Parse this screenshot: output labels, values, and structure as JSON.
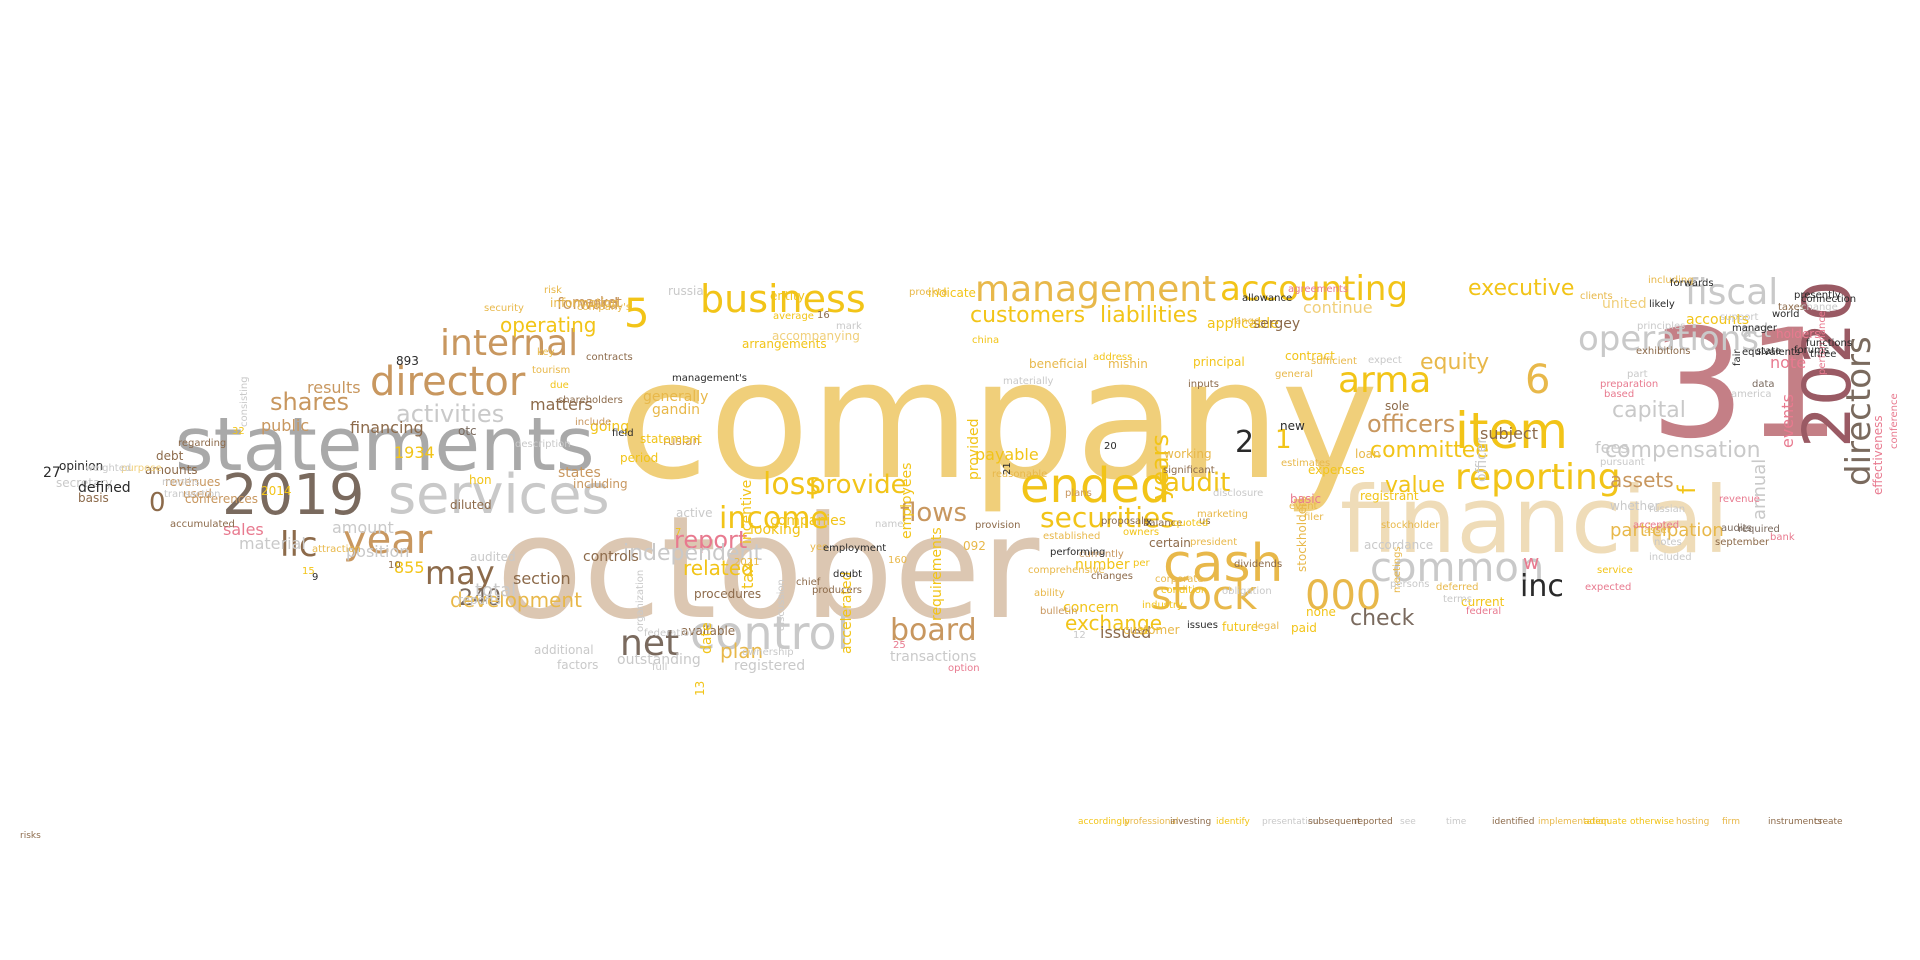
{
  "palette": {
    "gold": "#f2c418",
    "amber": "#e8b84a",
    "sand": "#f0cf7a",
    "tan": "#c8975f",
    "brown": "#8c6a4a",
    "taupe": "#7a6a5e",
    "gray": "#a9a9a9",
    "lightgray": "#c9c9c9",
    "beige": "#dcc7b2",
    "cream": "#efdcb8",
    "rose": "#c47f86",
    "pink": "#e87a8f",
    "mauve": "#9a5a64",
    "dark": "#2a2a2a"
  },
  "words": [
    {
      "text": "company",
      "color": "sand"
    },
    {
      "text": "october",
      "color": "beige"
    },
    {
      "text": "31",
      "color": "rose"
    },
    {
      "text": "financial",
      "color": "cream"
    },
    {
      "text": "statements",
      "color": "gray"
    },
    {
      "text": "2020",
      "color": "mauve"
    },
    {
      "text": "2019",
      "color": "taupe"
    },
    {
      "text": "services",
      "color": "lightgray"
    },
    {
      "text": "control",
      "color": "lightgray"
    },
    {
      "text": "business",
      "color": "gold"
    },
    {
      "text": "management",
      "color": "amber"
    },
    {
      "text": "accounting",
      "color": "gold"
    },
    {
      "text": "item",
      "color": "gold"
    },
    {
      "text": "ended",
      "color": "gold"
    },
    {
      "text": "cash",
      "color": "amber"
    },
    {
      "text": "director",
      "color": "tan"
    },
    {
      "text": "internal",
      "color": "tan"
    },
    {
      "text": "year",
      "color": "tan"
    },
    {
      "text": "operations",
      "color": "lightgray"
    },
    {
      "text": "fiscal",
      "color": "lightgray"
    },
    {
      "text": "reporting",
      "color": "gold"
    },
    {
      "text": "stock",
      "color": "amber"
    },
    {
      "text": "000",
      "color": "amber"
    },
    {
      "text": "common",
      "color": "lightgray"
    },
    {
      "text": "directors",
      "color": "taupe"
    },
    {
      "text": "arma",
      "color": "gold"
    },
    {
      "text": "6",
      "color": "amber"
    },
    {
      "text": "5",
      "color": "gold"
    },
    {
      "text": "net",
      "color": "taupe"
    },
    {
      "text": "board",
      "color": "tan"
    },
    {
      "text": "securities",
      "color": "gold"
    },
    {
      "text": "income",
      "color": "gold"
    },
    {
      "text": "loss",
      "color": "gold"
    },
    {
      "text": "provide",
      "color": "gold"
    },
    {
      "text": "may",
      "color": "brown"
    },
    {
      "text": "shares",
      "color": "tan"
    },
    {
      "text": "activities",
      "color": "lightgray"
    },
    {
      "text": "inc",
      "color": "dark"
    },
    {
      "text": "officers",
      "color": "tan"
    },
    {
      "text": "audit",
      "color": "gold"
    },
    {
      "text": "equity",
      "color": "amber"
    },
    {
      "text": "customers",
      "color": "gold"
    },
    {
      "text": "liabilities",
      "color": "gold"
    },
    {
      "text": "executive",
      "color": "gold"
    },
    {
      "text": "operating",
      "color": "gold"
    },
    {
      "text": "flows",
      "color": "tan"
    },
    {
      "text": "committee",
      "color": "gold"
    },
    {
      "text": "years",
      "color": "gold"
    },
    {
      "text": "exchange",
      "color": "gold"
    },
    {
      "text": "compensation",
      "color": "lightgray"
    },
    {
      "text": "capital",
      "color": "lightgray"
    },
    {
      "text": "act",
      "color": "lightgray"
    },
    {
      "text": "report",
      "color": "pink"
    },
    {
      "text": "llc",
      "color": "brown"
    },
    {
      "text": "0",
      "color": "brown"
    },
    {
      "text": "2",
      "color": "dark"
    },
    {
      "text": "1",
      "color": "gold"
    },
    {
      "text": "f",
      "color": "gold"
    },
    {
      "text": "w",
      "color": "pink"
    },
    {
      "text": "assets",
      "color": "tan"
    },
    {
      "text": "participation",
      "color": "amber"
    },
    {
      "text": "independent",
      "color": "lightgray"
    },
    {
      "text": "check",
      "color": "taupe"
    },
    {
      "text": "240",
      "color": "taupe"
    },
    {
      "text": "development",
      "color": "amber"
    },
    {
      "text": "issued",
      "color": "brown"
    },
    {
      "text": "plan",
      "color": "amber"
    },
    {
      "text": "related",
      "color": "gold"
    },
    {
      "text": "value",
      "color": "gold"
    },
    {
      "text": "total",
      "color": "lightgray"
    },
    {
      "text": "section",
      "color": "brown"
    },
    {
      "text": "subject",
      "color": "brown"
    },
    {
      "text": "fees",
      "color": "lightgray"
    },
    {
      "text": "annual",
      "color": "lightgray"
    },
    {
      "text": "events",
      "color": "pink"
    },
    {
      "text": "note",
      "color": "pink"
    },
    {
      "text": "sales",
      "color": "pink"
    },
    {
      "text": "material",
      "color": "lightgray"
    },
    {
      "text": "position",
      "color": "lightgray"
    },
    {
      "text": "amount",
      "color": "lightgray"
    },
    {
      "text": "results",
      "color": "tan"
    },
    {
      "text": "public",
      "color": "tan"
    },
    {
      "text": "financing",
      "color": "brown"
    },
    {
      "text": "forward",
      "color": "tan"
    },
    {
      "text": "market",
      "color": "tan"
    },
    {
      "text": "matters",
      "color": "brown"
    },
    {
      "text": "information",
      "color": "amber"
    },
    {
      "text": "states",
      "color": "tan"
    },
    {
      "text": "including",
      "color": "tan"
    },
    {
      "text": "going",
      "color": "gold"
    },
    {
      "text": "generally",
      "color": "amber"
    },
    {
      "text": "gandin",
      "color": "amber"
    },
    {
      "text": "ruslan",
      "color": "tan"
    },
    {
      "text": "controls",
      "color": "brown"
    },
    {
      "text": "outstanding",
      "color": "lightgray"
    },
    {
      "text": "registered",
      "color": "lightgray"
    },
    {
      "text": "transactions",
      "color": "lightgray"
    },
    {
      "text": "available",
      "color": "brown"
    },
    {
      "text": "procedures",
      "color": "brown"
    },
    {
      "text": "date",
      "color": "gold"
    },
    {
      "text": "tax",
      "color": "gold"
    },
    {
      "text": "incentive",
      "color": "gold"
    },
    {
      "text": "accelerated",
      "color": "gold"
    },
    {
      "text": "employees",
      "color": "gold"
    },
    {
      "text": "requirements",
      "color": "gold"
    },
    {
      "text": "provided",
      "color": "gold"
    },
    {
      "text": "payable",
      "color": "gold"
    },
    {
      "text": "number",
      "color": "gold"
    },
    {
      "text": "concern",
      "color": "gold"
    },
    {
      "text": "companies",
      "color": "gold"
    },
    {
      "text": "looking",
      "color": "gold"
    },
    {
      "text": "statement",
      "color": "gold"
    },
    {
      "text": "period",
      "color": "gold"
    },
    {
      "text": "arrangements",
      "color": "gold"
    },
    {
      "text": "entity",
      "color": "gold"
    },
    {
      "text": "average",
      "color": "gold"
    },
    {
      "text": "accompanying",
      "color": "sand"
    },
    {
      "text": "indicate",
      "color": "gold"
    },
    {
      "text": "applicable",
      "color": "gold"
    },
    {
      "text": "sergey",
      "color": "brown"
    },
    {
      "text": "continue",
      "color": "sand"
    },
    {
      "text": "united",
      "color": "sand"
    },
    {
      "text": "accounts",
      "color": "gold"
    },
    {
      "text": "officer",
      "color": "lightgray"
    },
    {
      "text": "sole",
      "color": "brown"
    },
    {
      "text": "loan",
      "color": "amber"
    },
    {
      "text": "registrant",
      "color": "gold"
    },
    {
      "text": "contract",
      "color": "gold"
    },
    {
      "text": "expenses",
      "color": "gold"
    },
    {
      "text": "stockholders",
      "color": "amber"
    },
    {
      "text": "current",
      "color": "gold"
    },
    {
      "text": "future",
      "color": "gold"
    },
    {
      "text": "paid",
      "color": "gold"
    },
    {
      "text": "accordance",
      "color": "lightgray"
    },
    {
      "text": "balance",
      "color": "brown"
    },
    {
      "text": "certain",
      "color": "brown"
    },
    {
      "text": "working",
      "color": "amber"
    },
    {
      "text": "significant",
      "color": "brown"
    },
    {
      "text": "principal",
      "color": "gold"
    },
    {
      "text": "address",
      "color": "gold"
    },
    {
      "text": "mishin",
      "color": "amber"
    },
    {
      "text": "china",
      "color": "gold"
    },
    {
      "text": "beneficial",
      "color": "amber"
    },
    {
      "text": "reasonable",
      "color": "amber"
    },
    {
      "text": "established",
      "color": "amber"
    },
    {
      "text": "industry",
      "color": "gold"
    },
    {
      "text": "customer",
      "color": "amber"
    },
    {
      "text": "changes",
      "color": "brown"
    },
    {
      "text": "currently",
      "color": "tan"
    },
    {
      "text": "per",
      "color": "gold"
    },
    {
      "text": "none",
      "color": "gold"
    },
    {
      "text": "asset",
      "color": "amber"
    },
    {
      "text": "russian",
      "color": "lightgray"
    },
    {
      "text": "notes",
      "color": "lightgray"
    },
    {
      "text": "included",
      "color": "lightgray"
    },
    {
      "text": "required",
      "color": "taupe"
    },
    {
      "text": "audits",
      "color": "taupe"
    },
    {
      "text": "september",
      "color": "brown"
    },
    {
      "text": "bank",
      "color": "pink"
    },
    {
      "text": "holders",
      "color": "pink"
    },
    {
      "text": "effectiveness",
      "color": "pink"
    },
    {
      "text": "conference",
      "color": "pink"
    },
    {
      "text": "performance",
      "color": "pink"
    },
    {
      "text": "manager",
      "color": "dark"
    },
    {
      "text": "equivalents",
      "color": "dark"
    },
    {
      "text": "data",
      "color": "taupe"
    },
    {
      "text": "fair",
      "color": "dark"
    },
    {
      "text": "accepted",
      "color": "pink"
    },
    {
      "text": "revenue",
      "color": "pink"
    },
    {
      "text": "preparation",
      "color": "pink"
    },
    {
      "text": "based",
      "color": "pink"
    },
    {
      "text": "part",
      "color": "lightgray"
    },
    {
      "text": "exhibitions",
      "color": "brown"
    },
    {
      "text": "america",
      "color": "lightgray"
    },
    {
      "text": "principles",
      "color": "lightgray"
    },
    {
      "text": "pursuant",
      "color": "lightgray"
    },
    {
      "text": "whether",
      "color": "lightgray"
    },
    {
      "text": "basic",
      "color": "pink"
    },
    {
      "text": "russia",
      "color": "lightgray"
    },
    {
      "text": "active",
      "color": "lightgray"
    },
    {
      "text": "16",
      "color": "brown"
    },
    {
      "text": "12",
      "color": "lightgray"
    },
    {
      "text": "092",
      "color": "amber"
    },
    {
      "text": "13",
      "color": "gold"
    },
    {
      "text": "855",
      "color": "gold"
    },
    {
      "text": "893",
      "color": "dark"
    },
    {
      "text": "27",
      "color": "dark"
    },
    {
      "text": "15",
      "color": "gold"
    },
    {
      "text": "7",
      "color": "gold"
    },
    {
      "text": "9",
      "color": "dark"
    },
    {
      "text": "10",
      "color": "brown"
    },
    {
      "text": "21",
      "color": "dark"
    },
    {
      "text": "20",
      "color": "dark"
    },
    {
      "text": "x",
      "color": "dark"
    },
    {
      "text": "us",
      "color": "brown"
    },
    {
      "text": "new",
      "color": "dark"
    },
    {
      "text": "otc",
      "color": "taupe"
    },
    {
      "text": "hon",
      "color": "gold"
    },
    {
      "text": "1934",
      "color": "gold"
    },
    {
      "text": "2014",
      "color": "gold"
    },
    {
      "text": "32",
      "color": "gold"
    },
    {
      "text": "used",
      "color": "tan"
    },
    {
      "text": "conferences",
      "color": "tan"
    },
    {
      "text": "revenues",
      "color": "tan"
    },
    {
      "text": "debt",
      "color": "brown"
    },
    {
      "text": "amounts",
      "color": "brown"
    },
    {
      "text": "secretary",
      "color": "lightgray"
    },
    {
      "text": "opinion",
      "color": "dark"
    },
    {
      "text": "basis",
      "color": "brown"
    },
    {
      "text": "defined",
      "color": "dark"
    },
    {
      "text": "diluted",
      "color": "brown"
    },
    {
      "text": "audited",
      "color": "lightgray"
    },
    {
      "text": "reports",
      "color": "lightgray"
    },
    {
      "text": "additional",
      "color": "lightgray"
    },
    {
      "text": "factors",
      "color": "lightgray"
    },
    {
      "text": "full",
      "color": "lightgray"
    },
    {
      "text": "ownership",
      "color": "lightgray"
    },
    {
      "text": "federation",
      "color": "lightgray"
    },
    {
      "text": "organization",
      "color": "lightgray"
    },
    {
      "text": "shareholders",
      "color": "brown"
    },
    {
      "text": "contracts",
      "color": "brown"
    },
    {
      "text": "due",
      "color": "gold"
    },
    {
      "text": "tourism",
      "color": "amber"
    },
    {
      "text": "proekta",
      "color": "amber"
    },
    {
      "text": "plans",
      "color": "tan"
    },
    {
      "text": "corporate",
      "color": "amber"
    },
    {
      "text": "president",
      "color": "amber"
    },
    {
      "text": "marketing",
      "color": "amber"
    },
    {
      "text": "disclosure",
      "color": "lightgray"
    },
    {
      "text": "event",
      "color": "amber"
    },
    {
      "text": "estimates",
      "color": "amber"
    },
    {
      "text": "deferred",
      "color": "amber"
    },
    {
      "text": "meetings",
      "color": "amber"
    },
    {
      "text": "stockholder",
      "color": "amber"
    },
    {
      "text": "filer",
      "color": "amber"
    },
    {
      "text": "general",
      "color": "amber"
    },
    {
      "text": "sufficient",
      "color": "amber"
    },
    {
      "text": "inputs",
      "color": "brown"
    },
    {
      "text": "name",
      "color": "lightgray"
    },
    {
      "text": "mark",
      "color": "lightgray"
    },
    {
      "text": "company's",
      "color": "amber"
    },
    {
      "text": "risk",
      "color": "amber"
    },
    {
      "text": "security",
      "color": "amber"
    },
    {
      "text": "purpose",
      "color": "sand"
    },
    {
      "text": "weighted",
      "color": "lightgray"
    },
    {
      "text": "clients",
      "color": "amber"
    },
    {
      "text": "including",
      "color": "amber"
    },
    {
      "text": "support",
      "color": "lightgray"
    },
    {
      "text": "taxes",
      "color": "brown"
    },
    {
      "text": "functions",
      "color": "dark"
    },
    {
      "text": "three",
      "color": "dark"
    },
    {
      "text": "world",
      "color": "dark"
    },
    {
      "text": "change",
      "color": "lightgray"
    },
    {
      "text": "likely",
      "color": "dark"
    },
    {
      "text": "forwards",
      "color": "dark"
    },
    {
      "text": "presently",
      "color": "dark"
    },
    {
      "text": "connection",
      "color": "dark"
    },
    {
      "text": "forums",
      "color": "dark"
    },
    {
      "text": "state",
      "color": "dark"
    },
    {
      "text": "producers",
      "color": "brown"
    },
    {
      "text": "2021",
      "color": "amber"
    },
    {
      "text": "yes",
      "color": "amber"
    },
    {
      "text": "160",
      "color": "amber"
    },
    {
      "text": "25",
      "color": "pink"
    },
    {
      "text": "option",
      "color": "pink"
    },
    {
      "text": "issues",
      "color": "dark"
    },
    {
      "text": "dividends",
      "color": "brown"
    },
    {
      "text": "allowance",
      "color": "dark"
    },
    {
      "text": "expect",
      "color": "lightgray"
    },
    {
      "text": "persons",
      "color": "lightgray"
    },
    {
      "text": "terms",
      "color": "lightgray"
    },
    {
      "text": "federal",
      "color": "pink"
    },
    {
      "text": "expected",
      "color": "pink"
    },
    {
      "text": "agreements",
      "color": "pink"
    },
    {
      "text": "chief",
      "color": "brown"
    },
    {
      "text": "service",
      "color": "gold"
    },
    {
      "text": "owners",
      "color": "gold"
    },
    {
      "text": "quoted",
      "color": "gold"
    },
    {
      "text": "proposals",
      "color": "brown"
    },
    {
      "text": "provision",
      "color": "brown"
    },
    {
      "text": "description",
      "color": "lightgray"
    },
    {
      "text": "attraction",
      "color": "amber"
    },
    {
      "text": "regarding",
      "color": "brown"
    },
    {
      "text": "accumulated",
      "color": "brown"
    },
    {
      "text": "months",
      "color": "lightgray"
    },
    {
      "text": "transaction",
      "color": "lightgray"
    },
    {
      "text": "consisting",
      "color": "lightgray"
    },
    {
      "text": "discussion",
      "color": "lightgray"
    },
    {
      "text": "condition",
      "color": "gold"
    },
    {
      "text": "comprehensive",
      "color": "amber"
    },
    {
      "text": "obligation",
      "color": "lightgray"
    },
    {
      "text": "ability",
      "color": "amber"
    },
    {
      "text": "legal",
      "color": "amber"
    },
    {
      "text": "range",
      "color": "amber"
    },
    {
      "text": "key",
      "color": "amber"
    },
    {
      "text": "include",
      "color": "tan"
    },
    {
      "text": "field",
      "color": "dark"
    },
    {
      "text": "management's",
      "color": "dark"
    },
    {
      "text": "materially",
      "color": "lightgray"
    },
    {
      "text": "doubt",
      "color": "dark"
    },
    {
      "text": "employment",
      "color": "dark"
    },
    {
      "text": "performing",
      "color": "dark"
    },
    {
      "text": "bulletin",
      "color": "tan"
    },
    {
      "text": "accordingly",
      "color": "gold"
    },
    {
      "text": "professional",
      "color": "amber"
    },
    {
      "text": "investing",
      "color": "brown"
    },
    {
      "text": "identify",
      "color": "gold"
    },
    {
      "text": "presentation",
      "color": "lightgray"
    },
    {
      "text": "subsequent",
      "color": "brown"
    },
    {
      "text": "reported",
      "color": "brown"
    },
    {
      "text": "see",
      "color": "lightgray"
    },
    {
      "text": "time",
      "color": "lightgray"
    },
    {
      "text": "identified",
      "color": "brown"
    },
    {
      "text": "implementation",
      "color": "amber"
    },
    {
      "text": "adequate",
      "color": "gold"
    },
    {
      "text": "otherwise",
      "color": "gold"
    },
    {
      "text": "hosting",
      "color": "amber"
    },
    {
      "text": "firm",
      "color": "amber"
    },
    {
      "text": "instruments",
      "color": "brown"
    },
    {
      "text": "create",
      "color": "brown"
    },
    {
      "text": "risks",
      "color": "brown"
    }
  ]
}
